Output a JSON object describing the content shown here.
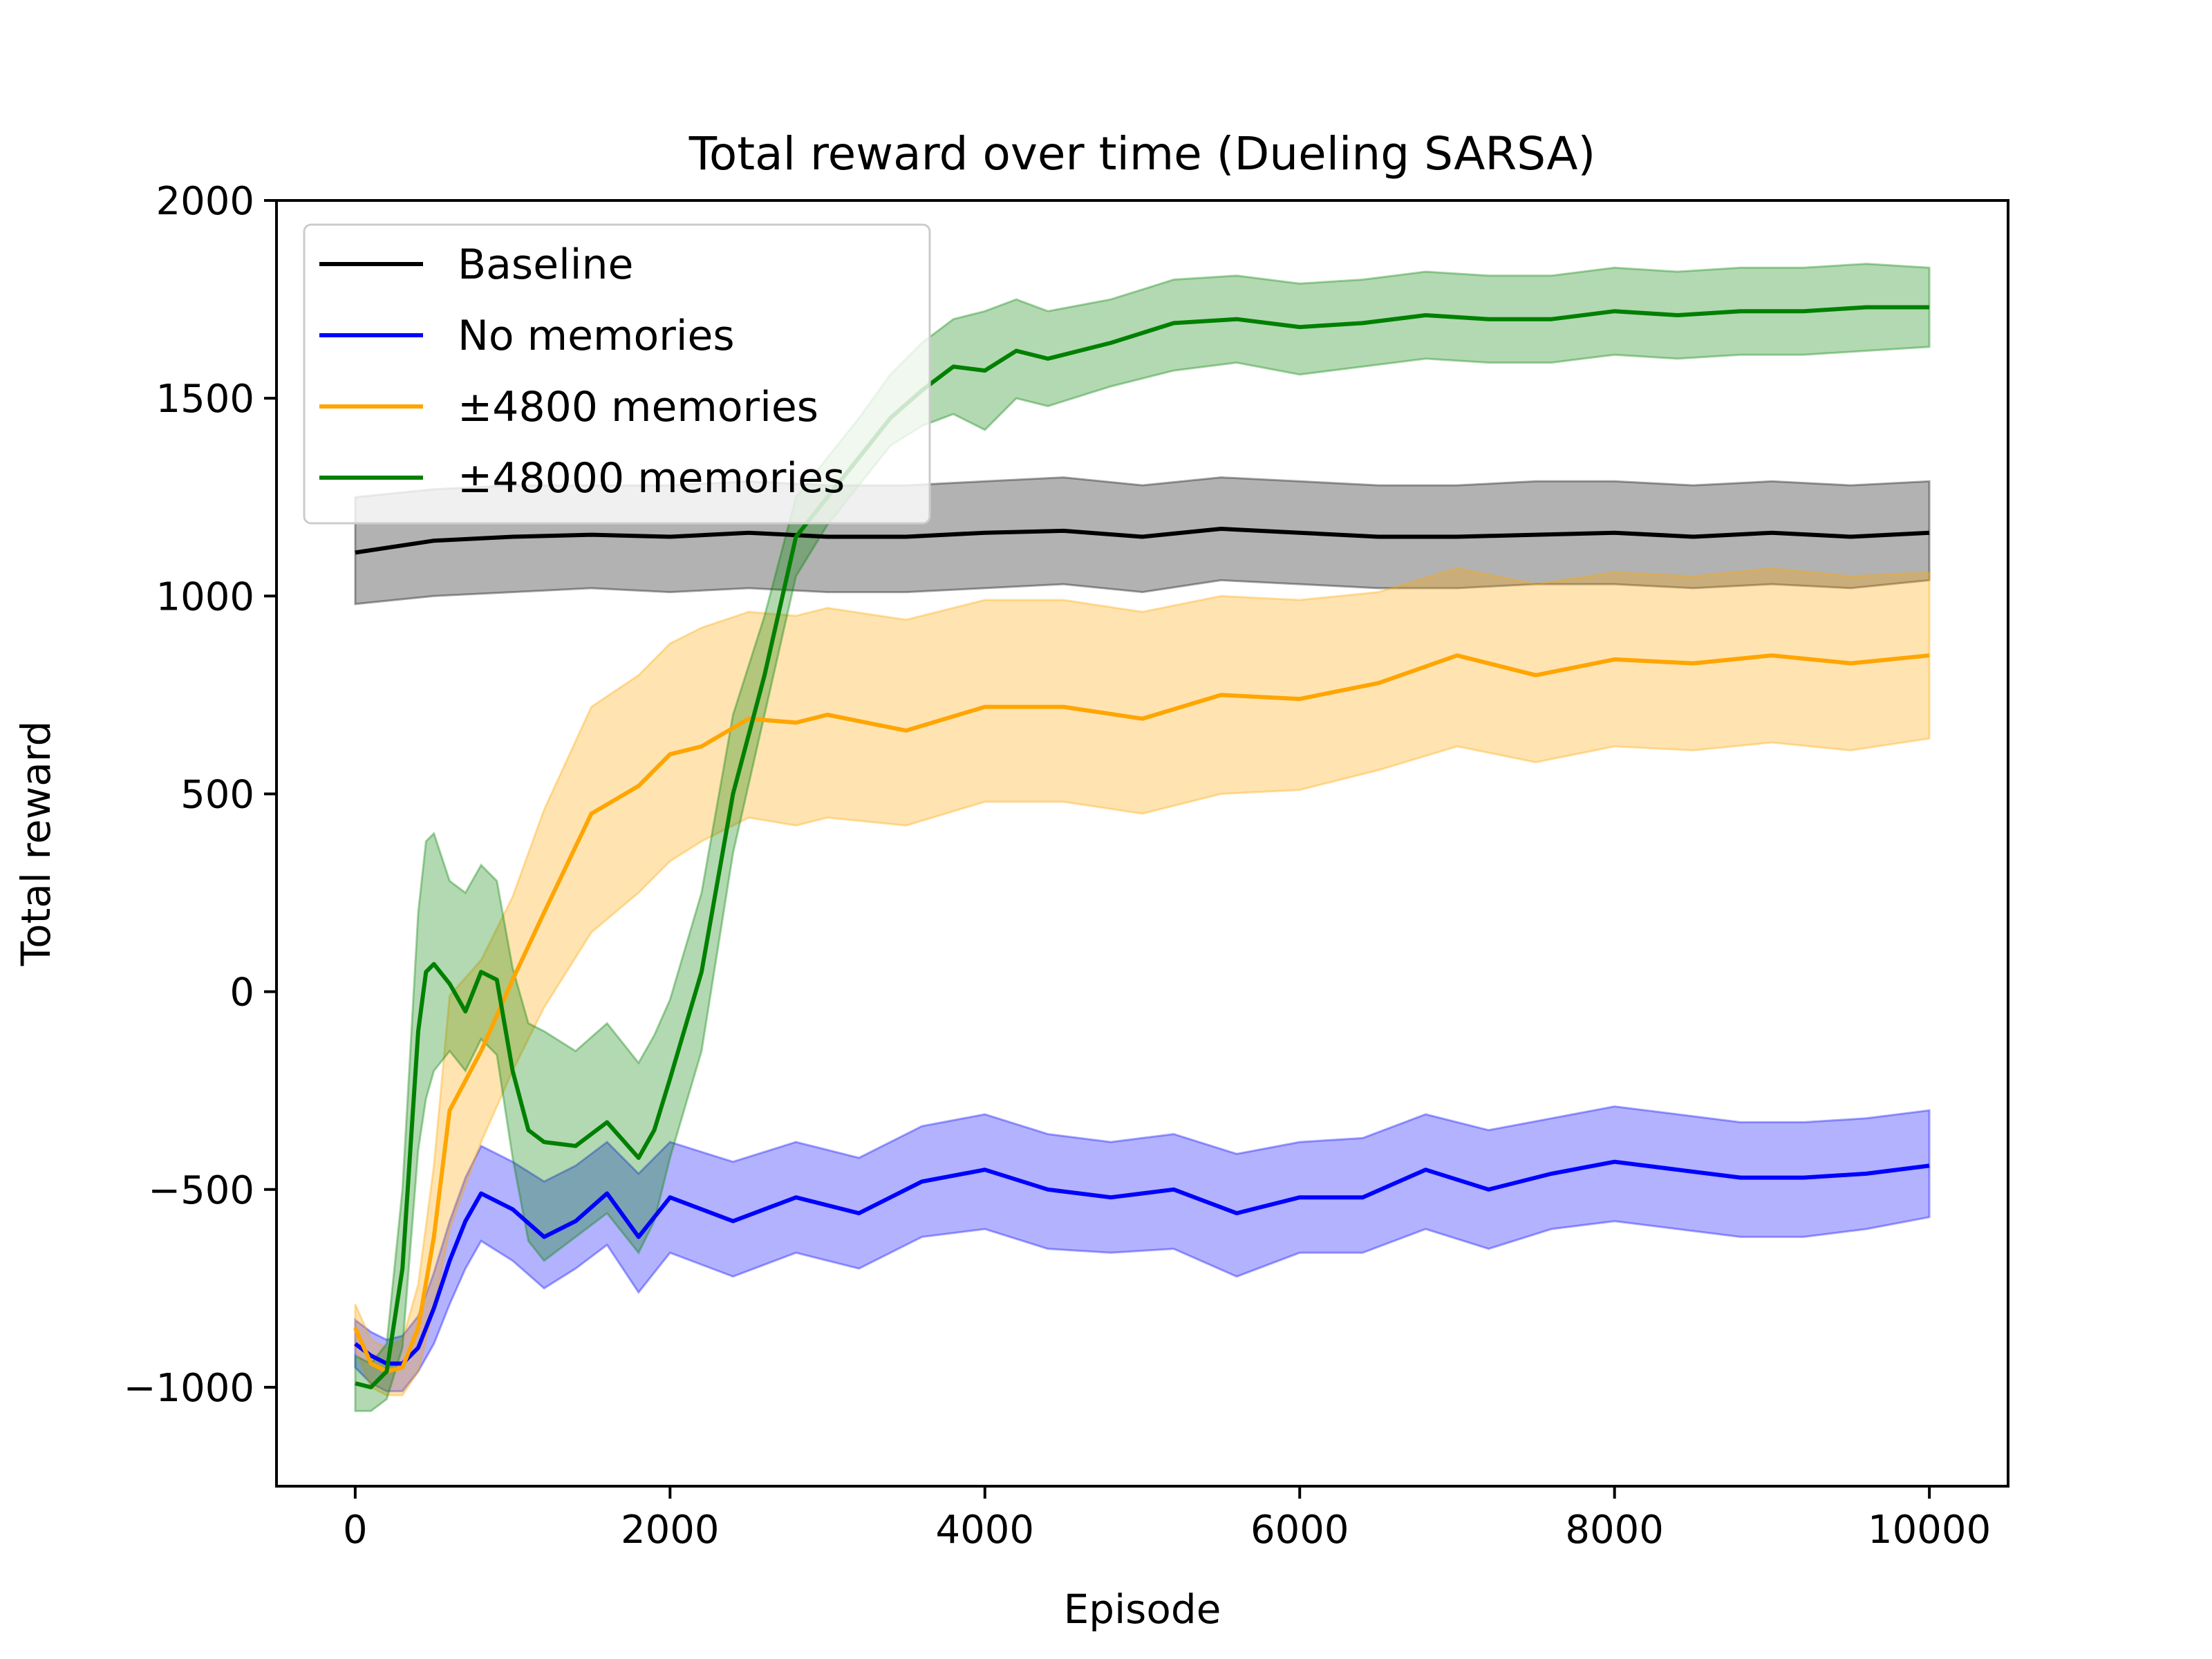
{
  "chart_data": {
    "type": "line",
    "title": "Total reward over time (Dueling SARSA)",
    "xlabel": "Episode",
    "ylabel": "Total reward",
    "xlim": [
      -500,
      10500
    ],
    "ylim": [
      -1250,
      2000
    ],
    "xticks": [
      0,
      2000,
      4000,
      6000,
      8000,
      10000
    ],
    "yticks": [
      2000,
      1500,
      1000,
      500,
      0,
      -500,
      -1000
    ],
    "xtick_labels": [
      "0",
      "2000",
      "4000",
      "6000",
      "8000",
      "10000"
    ],
    "ytick_labels": [
      "2000",
      "1500",
      "1000",
      "500",
      "0",
      "−500",
      "−1000"
    ],
    "grid": false,
    "legend_position": "top-left",
    "series": [
      {
        "name": "Baseline",
        "color": "#000000",
        "x": [
          0,
          500,
          1000,
          1500,
          2000,
          2500,
          3000,
          3500,
          4000,
          4500,
          5000,
          5500,
          6000,
          6500,
          7000,
          7500,
          8000,
          8500,
          9000,
          9500,
          10000
        ],
        "mean": [
          1110,
          1140,
          1150,
          1155,
          1150,
          1160,
          1150,
          1150,
          1160,
          1165,
          1150,
          1170,
          1160,
          1150,
          1150,
          1155,
          1160,
          1150,
          1160,
          1150,
          1160
        ],
        "lower": [
          980,
          1000,
          1010,
          1020,
          1010,
          1020,
          1010,
          1010,
          1020,
          1030,
          1010,
          1040,
          1030,
          1020,
          1020,
          1030,
          1030,
          1020,
          1030,
          1020,
          1040
        ],
        "upper": [
          1250,
          1270,
          1280,
          1280,
          1280,
          1290,
          1280,
          1280,
          1290,
          1300,
          1280,
          1300,
          1290,
          1280,
          1280,
          1290,
          1290,
          1280,
          1290,
          1280,
          1290
        ]
      },
      {
        "name": "No memories",
        "color": "#0000ff",
        "x": [
          0,
          100,
          200,
          300,
          400,
          500,
          600,
          700,
          800,
          1000,
          1200,
          1400,
          1600,
          1800,
          2000,
          2400,
          2800,
          3200,
          3600,
          4000,
          4400,
          4800,
          5200,
          5600,
          6000,
          6400,
          6800,
          7200,
          7600,
          8000,
          8400,
          8800,
          9200,
          9600,
          10000
        ],
        "mean": [
          -890,
          -920,
          -940,
          -940,
          -900,
          -800,
          -680,
          -580,
          -510,
          -550,
          -620,
          -580,
          -510,
          -620,
          -520,
          -580,
          -520,
          -560,
          -480,
          -450,
          -500,
          -520,
          -500,
          -560,
          -520,
          -520,
          -450,
          -500,
          -460,
          -430,
          -450,
          -470,
          -470,
          -460,
          -440
        ],
        "lower": [
          -950,
          -990,
          -1010,
          -1010,
          -960,
          -890,
          -790,
          -700,
          -630,
          -680,
          -750,
          -700,
          -640,
          -760,
          -660,
          -720,
          -660,
          -700,
          -620,
          -600,
          -650,
          -660,
          -650,
          -720,
          -660,
          -660,
          -600,
          -650,
          -600,
          -580,
          -600,
          -620,
          -620,
          -600,
          -570
        ],
        "upper": [
          -830,
          -860,
          -880,
          -870,
          -820,
          -710,
          -580,
          -470,
          -390,
          -430,
          -480,
          -440,
          -380,
          -460,
          -380,
          -430,
          -380,
          -420,
          -340,
          -310,
          -360,
          -380,
          -360,
          -410,
          -380,
          -370,
          -310,
          -350,
          -320,
          -290,
          -310,
          -330,
          -330,
          -320,
          -300
        ]
      },
      {
        "name": "±4800 memories",
        "color": "#ffa500",
        "x": [
          0,
          100,
          200,
          300,
          400,
          500,
          600,
          800,
          1000,
          1200,
          1500,
          1800,
          2000,
          2200,
          2500,
          2800,
          3000,
          3500,
          4000,
          4500,
          5000,
          5500,
          6000,
          6500,
          7000,
          7500,
          8000,
          8500,
          9000,
          9500,
          10000
        ],
        "mean": [
          -850,
          -940,
          -960,
          -950,
          -850,
          -620,
          -300,
          -150,
          30,
          200,
          450,
          520,
          600,
          620,
          690,
          680,
          700,
          660,
          720,
          720,
          690,
          750,
          740,
          780,
          850,
          800,
          840,
          830,
          850,
          830,
          850
        ],
        "lower": [
          -900,
          -1000,
          -1020,
          -1020,
          -960,
          -800,
          -600,
          -380,
          -200,
          -40,
          150,
          250,
          330,
          380,
          440,
          420,
          440,
          420,
          480,
          480,
          450,
          500,
          510,
          560,
          620,
          580,
          620,
          610,
          630,
          610,
          640
        ],
        "upper": [
          -790,
          -880,
          -900,
          -880,
          -740,
          -440,
          -10,
          80,
          240,
          460,
          720,
          800,
          880,
          920,
          960,
          950,
          970,
          940,
          990,
          990,
          960,
          1000,
          990,
          1010,
          1070,
          1030,
          1060,
          1050,
          1070,
          1050,
          1060
        ]
      },
      {
        "name": "±48000 memories",
        "color": "#008000",
        "x": [
          0,
          100,
          200,
          300,
          400,
          450,
          500,
          600,
          700,
          800,
          900,
          1000,
          1100,
          1200,
          1400,
          1600,
          1800,
          1900,
          2000,
          2200,
          2400,
          2600,
          2800,
          3000,
          3200,
          3400,
          3600,
          3800,
          4000,
          4200,
          4400,
          4800,
          5200,
          5600,
          6000,
          6400,
          6800,
          7200,
          7600,
          8000,
          8400,
          8800,
          9200,
          9600,
          10000
        ],
        "mean": [
          -990,
          -1000,
          -960,
          -700,
          -100,
          50,
          70,
          20,
          -50,
          50,
          30,
          -200,
          -350,
          -380,
          -390,
          -330,
          -420,
          -350,
          -220,
          50,
          500,
          800,
          1150,
          1250,
          1350,
          1450,
          1520,
          1580,
          1570,
          1620,
          1600,
          1640,
          1690,
          1700,
          1680,
          1690,
          1710,
          1700,
          1700,
          1720,
          1710,
          1720,
          1720,
          1730,
          1730
        ],
        "lower": [
          -1060,
          -1060,
          -1030,
          -900,
          -400,
          -270,
          -200,
          -150,
          -200,
          -120,
          -160,
          -420,
          -630,
          -680,
          -620,
          -560,
          -660,
          -580,
          -420,
          -150,
          350,
          700,
          1050,
          1180,
          1280,
          1380,
          1430,
          1460,
          1420,
          1500,
          1480,
          1530,
          1570,
          1590,
          1560,
          1580,
          1600,
          1590,
          1590,
          1610,
          1600,
          1610,
          1610,
          1620,
          1630
        ],
        "upper": [
          -920,
          -940,
          -890,
          -500,
          200,
          380,
          400,
          280,
          250,
          320,
          280,
          60,
          -80,
          -100,
          -150,
          -80,
          -180,
          -110,
          -20,
          250,
          700,
          950,
          1250,
          1350,
          1450,
          1560,
          1640,
          1700,
          1720,
          1750,
          1720,
          1750,
          1800,
          1810,
          1790,
          1800,
          1820,
          1810,
          1810,
          1830,
          1820,
          1830,
          1830,
          1840,
          1830
        ]
      }
    ]
  }
}
